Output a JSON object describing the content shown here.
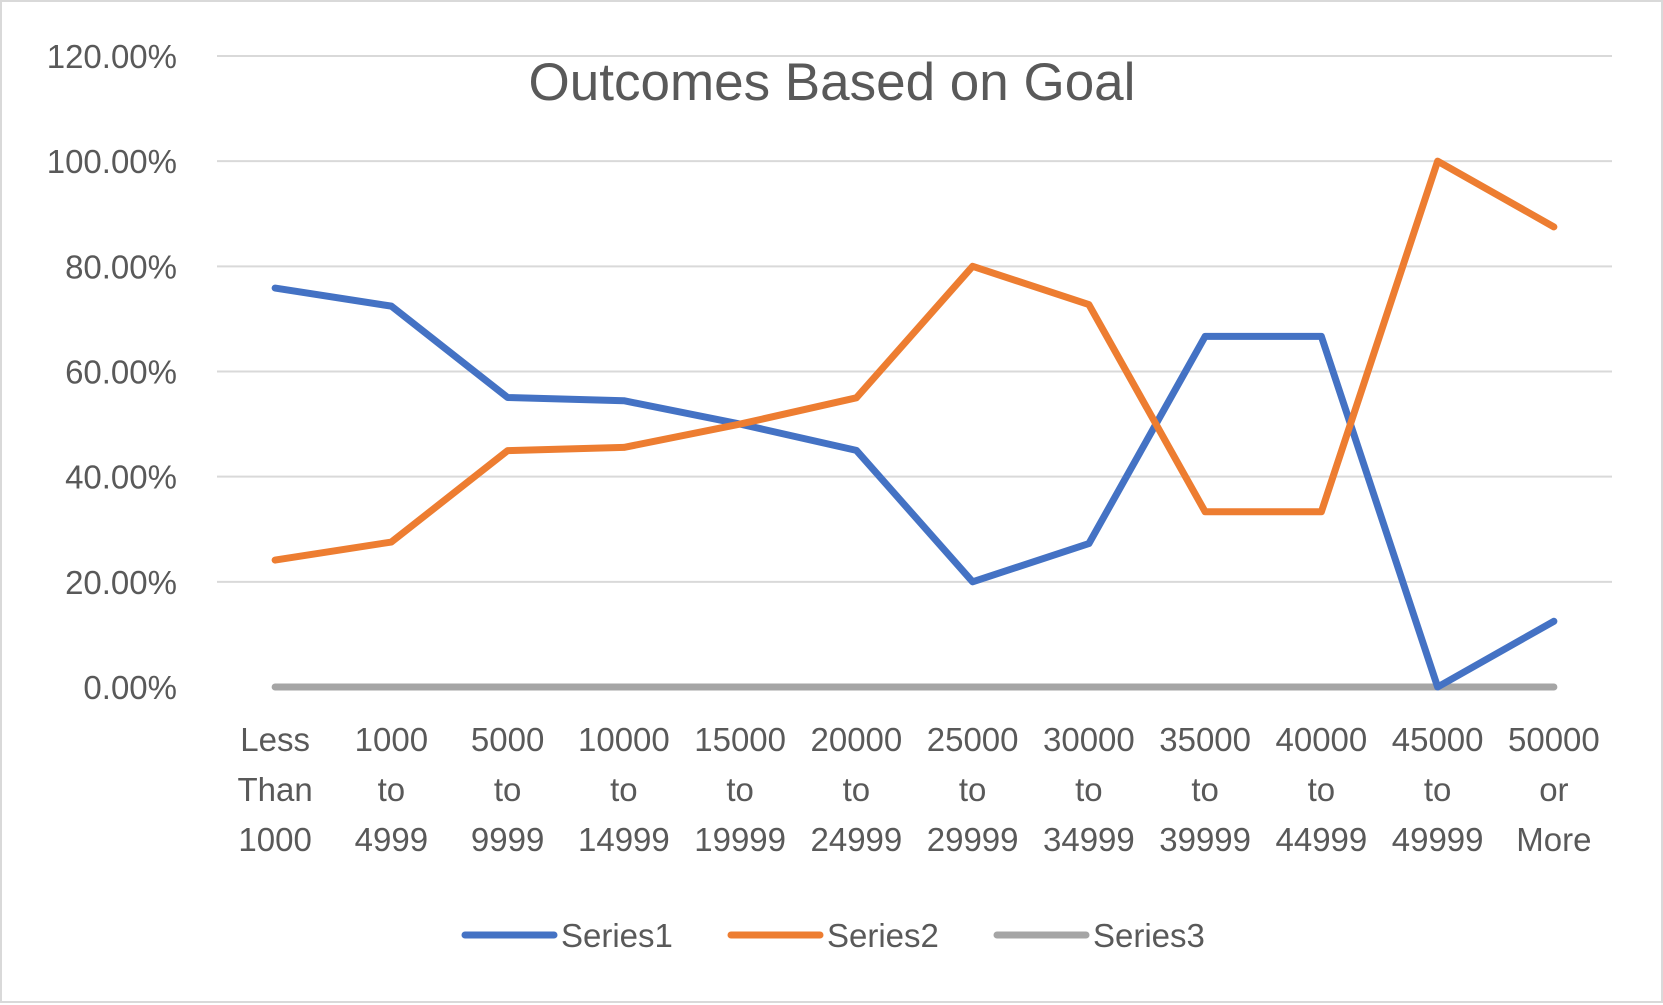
{
  "chart_data": {
    "type": "line",
    "title": "Outcomes Based on Goal",
    "xlabel": "",
    "ylabel": "",
    "categories": [
      [
        "Less",
        "Than",
        "1000"
      ],
      [
        "1000",
        "to",
        "4999"
      ],
      [
        "5000",
        "to",
        "9999"
      ],
      [
        "10000",
        "to",
        "14999"
      ],
      [
        "15000",
        "to",
        "19999"
      ],
      [
        "20000",
        "to",
        "24999"
      ],
      [
        "25000",
        "to",
        "29999"
      ],
      [
        "30000",
        "to",
        "34999"
      ],
      [
        "35000",
        "to",
        "39999"
      ],
      [
        "40000",
        "to",
        "44999"
      ],
      [
        "45000",
        "to",
        "49999"
      ],
      [
        "50000",
        "or",
        "More"
      ]
    ],
    "ylim": [
      0,
      1.2
    ],
    "yticks": [
      "0.00%",
      "20.00%",
      "40.00%",
      "60.00%",
      "80.00%",
      "100.00%",
      "120.00%"
    ],
    "ytick_values": [
      0,
      0.2,
      0.4,
      0.6,
      0.8,
      1.0,
      1.2
    ],
    "grid": true,
    "legend_position": "bottom",
    "series": [
      {
        "name": "Series1",
        "color": "#4472c4",
        "values": [
          0.7586,
          0.7243,
          0.5505,
          0.5444,
          0.5,
          0.45,
          0.2,
          0.2727,
          0.6667,
          0.6667,
          0.0,
          0.125
        ]
      },
      {
        "name": "Series2",
        "color": "#ed7d31",
        "values": [
          0.2414,
          0.2757,
          0.4495,
          0.4556,
          0.5,
          0.55,
          0.8,
          0.7273,
          0.3333,
          0.3333,
          1.0,
          0.875
        ]
      },
      {
        "name": "Series3",
        "color": "#a5a5a5",
        "values": [
          0,
          0,
          0,
          0,
          0,
          0,
          0,
          0,
          0,
          0,
          0,
          0
        ]
      }
    ]
  }
}
